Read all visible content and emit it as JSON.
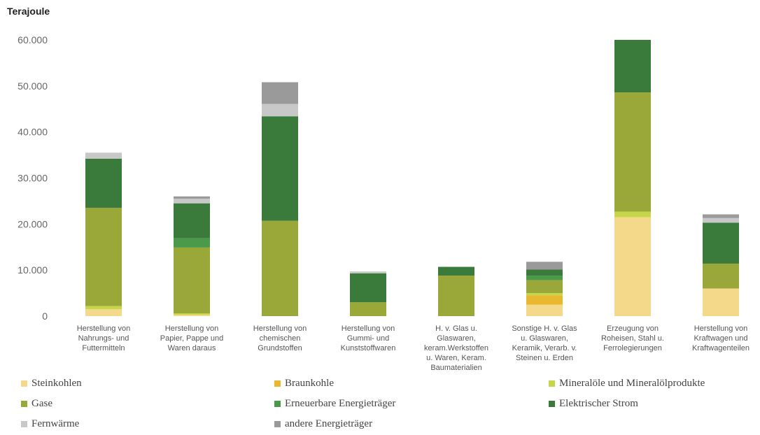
{
  "chart_data": {
    "type": "bar",
    "stacked": true,
    "title": "",
    "ylabel": "Terajoule",
    "xlabel": "",
    "ylim": [
      0,
      60000
    ],
    "yticks": [
      0,
      10000,
      20000,
      30000,
      40000,
      50000,
      60000
    ],
    "ytick_labels": [
      "0",
      "10.000",
      "20.000",
      "30.000",
      "40.000",
      "50.000",
      "60.000"
    ],
    "grid": false,
    "legend_position": "bottom",
    "categories": [
      [
        "Herstellung von",
        "Nahrungs- und",
        "Futtermitteln"
      ],
      [
        "Herstellung von",
        "Papier, Pappe und",
        "Waren daraus"
      ],
      [
        "Herstellung von",
        "chemischen",
        "Grundstoffen"
      ],
      [
        "Herstellung von",
        "Gummi- und",
        "Kunststoffwaren"
      ],
      [
        "H. v. Glas u.",
        "Glaswaren,",
        "keram.Werkstoffen",
        "u. Waren, Keram.",
        "Baumaterialien"
      ],
      [
        "Sonstige H. v. Glas",
        "u. Glaswaren,",
        "Keramik, Verarb. v.",
        "Steinen u. Erden"
      ],
      [
        "Erzeugung von",
        "Roheisen, Stahl u.",
        "Ferrolegierungen"
      ],
      [
        "Herstellung von",
        "Kraftwagen und",
        "Kraftwagenteilen"
      ]
    ],
    "series": [
      {
        "name": "Steinkohlen",
        "color": "#f5d98a",
        "values": [
          1500,
          300,
          0,
          0,
          0,
          2500,
          21500,
          6000
        ]
      },
      {
        "name": "Braunkohle",
        "color": "#e8b92f",
        "values": [
          0,
          0,
          0,
          0,
          0,
          2000,
          0,
          0
        ]
      },
      {
        "name": "Mineralöle und  Mineralölprodukte",
        "color": "#c5d64a",
        "values": [
          700,
          300,
          0,
          0,
          0,
          500,
          1200,
          0
        ]
      },
      {
        "name": "Gase",
        "color": "#9aa83a",
        "values": [
          21300,
          14300,
          20700,
          3000,
          8800,
          2800,
          25900,
          5400
        ]
      },
      {
        "name": "Erneuerbare Energieträger",
        "color": "#4a9a4a",
        "values": [
          0,
          2000,
          0,
          0,
          0,
          1000,
          0,
          0
        ]
      },
      {
        "name": "Elektrischer Strom",
        "color": "#3a7a3a",
        "values": [
          10700,
          7600,
          22700,
          6300,
          1900,
          1300,
          11400,
          8900
        ]
      },
      {
        "name": "Fernwärme",
        "color": "#c8c8c8",
        "values": [
          1300,
          1000,
          2700,
          400,
          0,
          0,
          0,
          1000
        ]
      },
      {
        "name": "andere Energieträger",
        "color": "#9a9a9a",
        "values": [
          0,
          500,
          4700,
          0,
          0,
          1700,
          0,
          800
        ]
      }
    ]
  }
}
